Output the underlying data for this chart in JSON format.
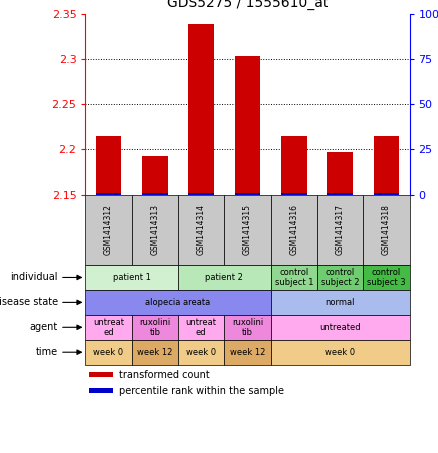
{
  "title": "GDS5275 / 1555610_at",
  "samples": [
    "GSM1414312",
    "GSM1414313",
    "GSM1414314",
    "GSM1414315",
    "GSM1414316",
    "GSM1414317",
    "GSM1414318"
  ],
  "red_values": [
    2.215,
    2.193,
    2.338,
    2.303,
    2.215,
    2.197,
    2.215
  ],
  "red_base": 2.15,
  "ylim": [
    2.15,
    2.35
  ],
  "yticks_left": [
    2.15,
    2.2,
    2.25,
    2.3,
    2.35
  ],
  "yticks_right": [
    0,
    25,
    50,
    75,
    100
  ],
  "rows": [
    {
      "label": "individual",
      "cells": [
        {
          "text": "patient 1",
          "colspan": 2,
          "color": "#d0f0d0"
        },
        {
          "text": "patient 2",
          "colspan": 2,
          "color": "#b8e8b8"
        },
        {
          "text": "control\nsubject 1",
          "colspan": 1,
          "color": "#90d890"
        },
        {
          "text": "control\nsubject 2",
          "colspan": 1,
          "color": "#70cc70"
        },
        {
          "text": "control\nsubject 3",
          "colspan": 1,
          "color": "#44bb44"
        }
      ]
    },
    {
      "label": "disease state",
      "cells": [
        {
          "text": "alopecia areata",
          "colspan": 4,
          "color": "#8888ee"
        },
        {
          "text": "normal",
          "colspan": 3,
          "color": "#aabbee"
        }
      ]
    },
    {
      "label": "agent",
      "cells": [
        {
          "text": "untreat\ned",
          "colspan": 1,
          "color": "#ffaaee"
        },
        {
          "text": "ruxolini\ntib",
          "colspan": 1,
          "color": "#ee88dd"
        },
        {
          "text": "untreat\ned",
          "colspan": 1,
          "color": "#ffaaee"
        },
        {
          "text": "ruxolini\ntib",
          "colspan": 1,
          "color": "#ee88dd"
        },
        {
          "text": "untreated",
          "colspan": 3,
          "color": "#ffaaee"
        }
      ]
    },
    {
      "label": "time",
      "cells": [
        {
          "text": "week 0",
          "colspan": 1,
          "color": "#f0cc88"
        },
        {
          "text": "week 12",
          "colspan": 1,
          "color": "#ddaa66"
        },
        {
          "text": "week 0",
          "colspan": 1,
          "color": "#f0cc88"
        },
        {
          "text": "week 12",
          "colspan": 1,
          "color": "#ddaa66"
        },
        {
          "text": "week 0",
          "colspan": 3,
          "color": "#f0cc88"
        }
      ]
    }
  ],
  "legend": [
    {
      "color": "#cc0000",
      "label": "transformed count"
    },
    {
      "color": "#0000cc",
      "label": "percentile rank within the sample"
    }
  ],
  "bar_color": "#cc0000",
  "blue_color": "#0000cc",
  "sample_bg_color": "#c8c8c8"
}
